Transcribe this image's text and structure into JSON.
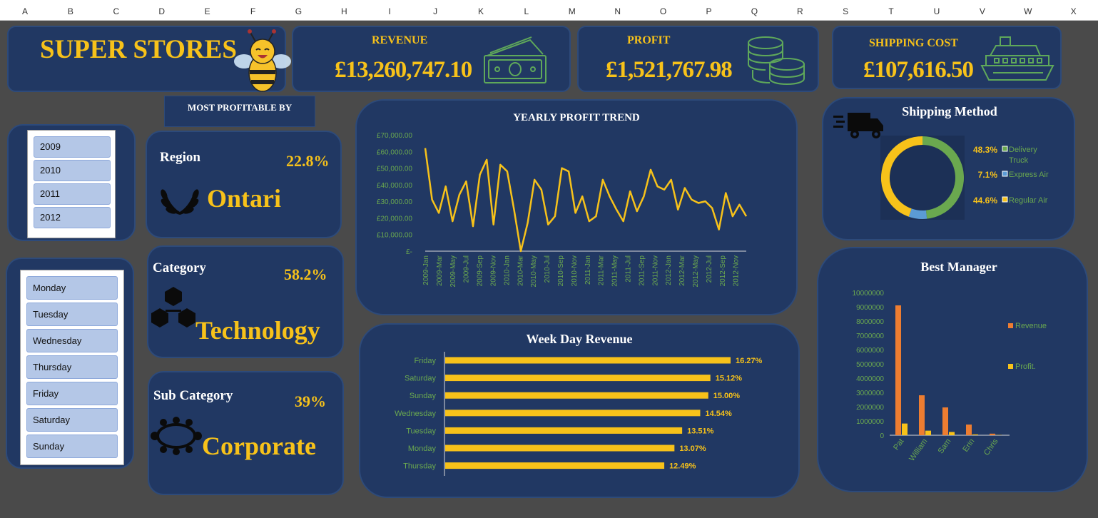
{
  "columns": [
    "A",
    "B",
    "C",
    "D",
    "E",
    "F",
    "G",
    "H",
    "I",
    "J",
    "K",
    "L",
    "M",
    "N",
    "O",
    "P",
    "Q",
    "R",
    "S",
    "T",
    "U",
    "V",
    "W",
    "X"
  ],
  "brand": {
    "title": "SUPER STORES"
  },
  "kpis": {
    "revenue": {
      "label": "REVENUE",
      "value": "£13,260,747.10",
      "icon": "money-icon"
    },
    "profit": {
      "label": "PROFIT",
      "value": "£1,521,767.98",
      "icon": "coins-icon"
    },
    "shipping": {
      "label": "SHIPPING COST",
      "value": "£107,616.50",
      "icon": "ship-icon"
    }
  },
  "most_profitable": {
    "header": "MOST PROFITABLE BY"
  },
  "year_slicer": {
    "items": [
      "2009",
      "2010",
      "2011",
      "2012"
    ]
  },
  "day_slicer": {
    "items": [
      "Monday",
      "Tuesday",
      "Wednesday",
      "Thursday",
      "Friday",
      "Saturday",
      "Sunday"
    ]
  },
  "cards": {
    "region": {
      "label": "Region",
      "pct": "22.8%",
      "value": "Ontari",
      "icon": "laurel-icon"
    },
    "category": {
      "label": "Category",
      "pct": "58.2%",
      "value": "Technology",
      "icon": "cubes-icon"
    },
    "subcategory": {
      "label": "Sub Category",
      "pct": "39%",
      "value": "Corporate",
      "icon": "meeting-table-icon"
    }
  },
  "colors": {
    "gold": "#f7c21a",
    "green": "#6aa84f",
    "blue": "#5b9bd5",
    "orange": "#ed7d31",
    "panel": "#213863",
    "label_green": "#6aa84f"
  },
  "chart_data": [
    {
      "type": "line",
      "title": "YEARLY PROFIT TREND",
      "x": [
        "2009-Jan",
        "2009-Feb",
        "2009-Mar",
        "2009-Apr",
        "2009-May",
        "2009-Jun",
        "2009-Jul",
        "2009-Aug",
        "2009-Sep",
        "2009-Oct",
        "2009-Nov",
        "2009-Dec",
        "2010-Jan",
        "2010-Feb",
        "2010-Mar",
        "2010-Apr",
        "2010-May",
        "2010-Jun",
        "2010-Jul",
        "2010-Aug",
        "2010-Sep",
        "2010-Oct",
        "2010-Nov",
        "2010-Dec",
        "2011-Jan",
        "2011-Feb",
        "2011-Mar",
        "2011-Apr",
        "2011-May",
        "2011-Jun",
        "2011-Jul",
        "2011-Aug",
        "2011-Sep",
        "2011-Oct",
        "2011-Nov",
        "2011-Dec",
        "2012-Jan",
        "2012-Feb",
        "2012-Mar",
        "2012-Apr",
        "2012-May",
        "2012-Jun",
        "2012-Jul",
        "2012-Aug",
        "2012-Sep",
        "2012-Oct",
        "2012-Nov",
        "2012-Dec"
      ],
      "x_tick_labels": [
        "2009-Jan",
        "2009-Mar",
        "2009-May",
        "2009-Jul",
        "2009-Sep",
        "2009-Nov",
        "2010-Jan",
        "2010-Mar",
        "2010-May",
        "2010-Jul",
        "2010-Sep",
        "2010-Nov",
        "2011-Jan",
        "2011-Mar",
        "2011-May",
        "2011-Jul",
        "2011-Sep",
        "2011-Nov",
        "2012-Jan",
        "2012-Mar",
        "2012-May",
        "2012-Jul",
        "2012-Sep",
        "2012-Nov"
      ],
      "y_tick_labels": [
        "£-",
        "£10,000.00",
        "£20,000.00",
        "£30,000.00",
        "£40,000.00",
        "£50,000.00",
        "£60,000.00",
        "£70,000.00"
      ],
      "values": [
        62000,
        31000,
        23000,
        39000,
        18000,
        34000,
        42000,
        15000,
        46000,
        55000,
        16000,
        52000,
        48000,
        25000,
        0,
        17000,
        43000,
        37000,
        16000,
        21000,
        50000,
        48000,
        23000,
        33000,
        18000,
        21000,
        43000,
        33000,
        25000,
        18000,
        36000,
        24000,
        33000,
        49000,
        39000,
        37000,
        43000,
        25000,
        38000,
        31000,
        29000,
        30000,
        26000,
        13000,
        35000,
        21000,
        28000,
        21000
      ],
      "ylim": [
        0,
        70000
      ],
      "color": "#f7c21a"
    },
    {
      "type": "bar",
      "title": "Week Day Revenue",
      "categories": [
        "Friday",
        "Saturday",
        "Sunday",
        "Wednesday",
        "Tuesday",
        "Monday",
        "Thursday"
      ],
      "values": [
        16.27,
        15.12,
        15.0,
        14.54,
        13.51,
        13.07,
        12.49
      ],
      "labels": [
        "16.27%",
        "15.12%",
        "15.00%",
        "14.54%",
        "13.51%",
        "13.07%",
        "12.49%"
      ],
      "orientation": "horizontal",
      "color": "#f7c21a"
    },
    {
      "type": "pie",
      "title": "Shipping Method",
      "categories": [
        "Delivery Truck",
        "Express Air",
        "Regular Air"
      ],
      "legend": [
        "Delivery Truck",
        "Express Air",
        "Regular Air"
      ],
      "values": [
        48.3,
        7.1,
        44.6
      ],
      "labels": [
        "48.3%",
        "7.1%",
        "44.6%"
      ],
      "colors": [
        "#6aa84f",
        "#5b9bd5",
        "#f7c21a"
      ],
      "style": "donut"
    },
    {
      "type": "bar",
      "title": "Best Manager",
      "categories": [
        "Pat",
        "William",
        "Sam",
        "Erin",
        "Chris"
      ],
      "series": [
        {
          "name": "Revenue",
          "values": [
            9100000,
            2800000,
            1950000,
            750000,
            110000
          ],
          "color": "#ed7d31"
        },
        {
          "name": "Profit.",
          "values": [
            820000,
            320000,
            230000,
            60000,
            20000
          ],
          "color": "#f7c21a"
        }
      ],
      "y_tick_labels": [
        "0",
        "1000000",
        "2000000",
        "3000000",
        "4000000",
        "5000000",
        "6000000",
        "7000000",
        "8000000",
        "9000000",
        "10000000"
      ],
      "ylim": [
        0,
        10000000
      ]
    }
  ]
}
